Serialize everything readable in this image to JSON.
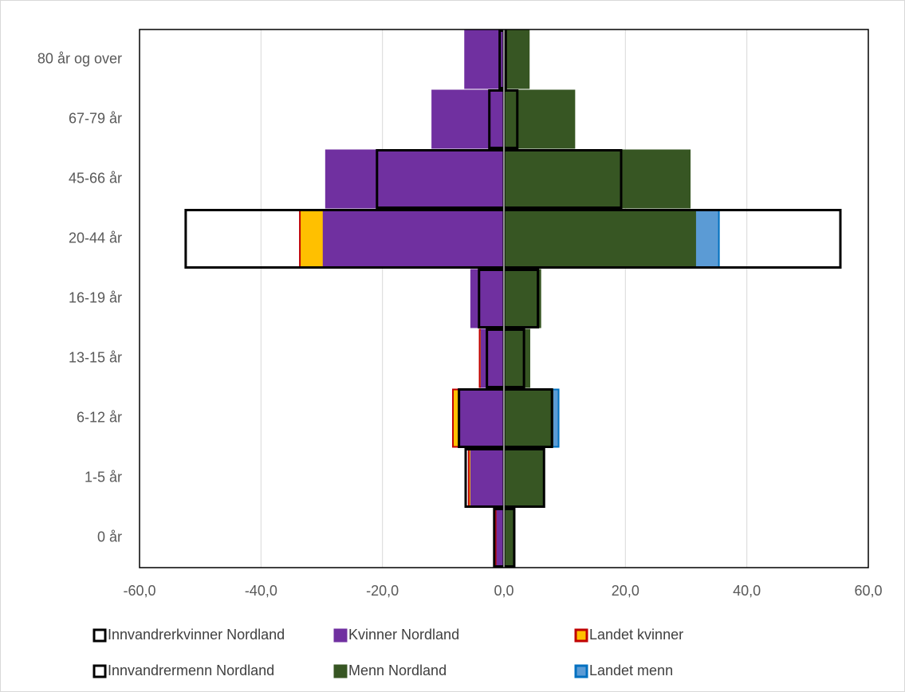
{
  "chart_data": {
    "type": "bar",
    "orientation": "horizontal",
    "categories": [
      "0 år",
      "1-5 år",
      "6-12 år",
      "13-15 år",
      "16-19 år",
      "20-44 år",
      "45-66 år",
      "67-79 år",
      "80 år og over"
    ],
    "series": [
      {
        "name": "Innvandrerkvinner Nordland",
        "color": "none",
        "edgecolor": "#000000",
        "values": [
          -1.6,
          -6.3,
          -7.4,
          -2.8,
          -4.1,
          -52.4,
          -20.9,
          -2.4,
          -0.7
        ]
      },
      {
        "name": "Kvinner Nordland",
        "color": "#7030a0",
        "edgecolor": "#7030a0",
        "values": [
          -1.1,
          -5.4,
          -7.2,
          -3.7,
          -5.4,
          -29.7,
          -29.3,
          -11.8,
          -6.4
        ]
      },
      {
        "name": "Landet kvinner",
        "color": "#ffc000",
        "edgecolor": "#c00000",
        "values": [
          -1.3,
          -5.8,
          -8.4,
          -4.0,
          -5.0,
          -33.6,
          -23.5,
          -9.0,
          -5.5
        ]
      },
      {
        "name": "Innvandrermenn Nordland",
        "color": "none",
        "edgecolor": "#000000",
        "values": [
          1.7,
          6.6,
          7.9,
          3.3,
          5.6,
          55.4,
          19.3,
          2.2,
          0.3
        ]
      },
      {
        "name": "Menn Nordland",
        "color": "#375623",
        "edgecolor": "#375623",
        "values": [
          1.4,
          6.3,
          8.0,
          4.2,
          6.0,
          31.5,
          30.6,
          11.6,
          4.1
        ]
      },
      {
        "name": "Landet menn",
        "color": "#5b9bd5",
        "edgecolor": "#0070c0",
        "values": [
          1.2,
          6.3,
          9.0,
          4.0,
          5.5,
          35.4,
          27.5,
          6.0,
          3.5
        ]
      }
    ],
    "xlim": [
      -60,
      60
    ],
    "xticks": [
      {
        "value": -60,
        "label": "-60,0"
      },
      {
        "value": -40,
        "label": "-40,0"
      },
      {
        "value": -20,
        "label": "-20,0"
      },
      {
        "value": 0,
        "label": "0,0"
      },
      {
        "value": 20,
        "label": "20,0"
      },
      {
        "value": 40,
        "label": "40,0"
      },
      {
        "value": 60,
        "label": "60,0"
      }
    ],
    "grid": true,
    "legend": "bottom"
  }
}
